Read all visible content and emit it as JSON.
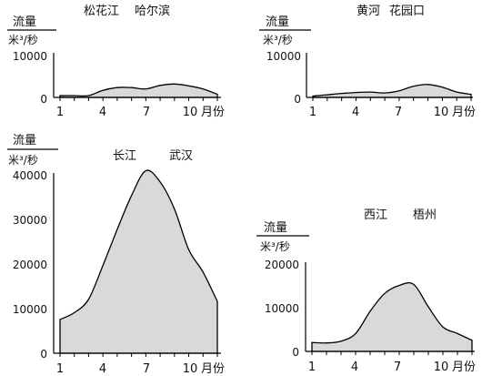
{
  "chart_data": [
    {
      "type": "area",
      "title": "松花江　　哈尔滨",
      "river": "松花江",
      "station": "哈尔滨",
      "ylabel_top": "流量",
      "ylabel_unit": "米³/秒",
      "xlabel": "月份",
      "x_ticks": [
        "1",
        "4",
        "7",
        "10"
      ],
      "y_ticks": [
        "0",
        "10000"
      ],
      "ylim": [
        0,
        10000
      ],
      "x": [
        1,
        2,
        3,
        4,
        5,
        6,
        7,
        8,
        9,
        10,
        11,
        12
      ],
      "values": [
        400,
        400,
        400,
        1600,
        2200,
        2200,
        1900,
        2700,
        3000,
        2600,
        1900,
        700
      ],
      "fill": "#d9d9d9",
      "stroke": "#000000"
    },
    {
      "type": "area",
      "title": "黄河　　花园口",
      "river": "黄河",
      "station": "花园口",
      "ylabel_top": "流量",
      "ylabel_unit": "米³/秒",
      "xlabel": "月份",
      "x_ticks": [
        "1",
        "4",
        "7",
        "10"
      ],
      "y_ticks": [
        "0",
        "10000"
      ],
      "ylim": [
        0,
        10000
      ],
      "x": [
        1,
        2,
        3,
        4,
        5,
        6,
        7,
        8,
        9,
        10,
        11,
        12
      ],
      "values": [
        300,
        600,
        900,
        1100,
        1200,
        1000,
        1500,
        2500,
        2900,
        2300,
        1200,
        700
      ],
      "fill": "#d9d9d9",
      "stroke": "#000000"
    },
    {
      "type": "area",
      "title": "长江　　武汉",
      "river": "长江",
      "station": "武汉",
      "ylabel_top": "流量",
      "ylabel_unit": "米³/秒",
      "xlabel": "月份",
      "x_ticks": [
        "1",
        "4",
        "7",
        "10"
      ],
      "y_ticks": [
        "0",
        "10000",
        "20000",
        "30000",
        "40000"
      ],
      "ylim": [
        0,
        40000
      ],
      "x": [
        1,
        2,
        3,
        4,
        5,
        6,
        7,
        8,
        9,
        10,
        11,
        12
      ],
      "values": [
        7500,
        9000,
        12000,
        19500,
        27500,
        35000,
        40500,
        38000,
        32000,
        23000,
        18000,
        11500
      ],
      "fill": "#d9d9d9",
      "stroke": "#000000"
    },
    {
      "type": "area",
      "title": "西江　　梧州",
      "river": "西江",
      "station": "梧州",
      "ylabel_top": "流量",
      "ylabel_unit": "米³/秒",
      "xlabel": "月份",
      "x_ticks": [
        "1",
        "4",
        "7",
        "10"
      ],
      "y_ticks": [
        "0",
        "10000",
        "20000"
      ],
      "ylim": [
        0,
        20000
      ],
      "x": [
        1,
        2,
        3,
        4,
        5,
        6,
        7,
        8,
        9,
        10,
        11,
        12
      ],
      "values": [
        2000,
        1900,
        2300,
        4000,
        9000,
        13000,
        14800,
        15000,
        10000,
        5500,
        4000,
        2500
      ],
      "fill": "#d9d9d9",
      "stroke": "#000000"
    }
  ]
}
